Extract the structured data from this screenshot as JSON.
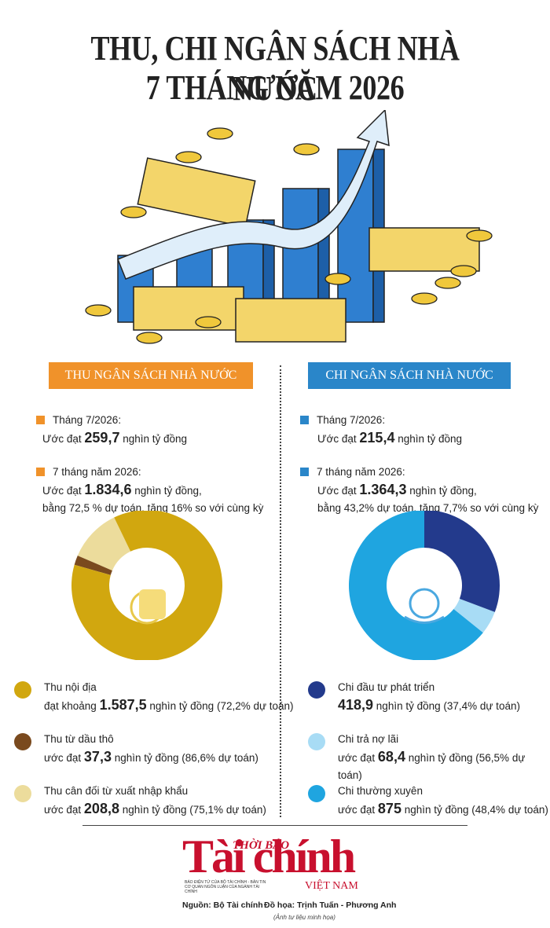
{
  "title": [
    "THU, CHI NGÂN SÁCH NHÀ NƯỚC",
    "7 THÁNG NĂM 2026"
  ],
  "left": {
    "heading": "THU NGÂN SÁCH NHÀ NƯỚC",
    "facts": [
      {
        "label": "Tháng 7/2026:",
        "pre": "Ước đạt ",
        "value": "259,7",
        "post": " nghìn tỷ đồng"
      },
      {
        "label": "7 tháng năm 2026:",
        "pre": "Ước đạt ",
        "value": "1.834,6",
        "post": " nghìn tỷ đồng,",
        "note": "bằng 72,5 % dự toán, tăng 16% so với cùng kỳ"
      }
    ],
    "breakdown": [
      {
        "name": "Thu nội địa",
        "color": "#d1a70f",
        "pre": "đạt khoảng ",
        "value": 1587.5,
        "value_label": "1.587,5",
        "post": " nghìn tỷ đồng (72,2% dự toán)"
      },
      {
        "name": "Thu từ dầu thô",
        "color": "#7a4a1e",
        "pre": "ước đạt ",
        "value": 37.3,
        "value_label": "37,3",
        "post": " nghìn tỷ đồng (86,6% dự toán)"
      },
      {
        "name": "Thu cân đối từ xuất nhập khẩu",
        "color": "#ecdc9c",
        "pre": "ước đạt ",
        "value": 208.8,
        "value_label": "208,8",
        "post": " nghìn tỷ đồng (75,1% dự toán)"
      }
    ]
  },
  "right": {
    "heading": "CHI NGÂN SÁCH NHÀ NƯỚC",
    "facts": [
      {
        "label": "Tháng 7/2026:",
        "pre": "Ước đạt ",
        "value": "215,4",
        "post": " nghìn tỷ đồng"
      },
      {
        "label": "7 tháng năm 2026:",
        "pre": "Ước đạt ",
        "value": "1.364,3",
        "post": " nghìn tỷ đồng,",
        "note": "bằng 43,2% dự toán, tăng 7,7% so với cùng kỳ"
      }
    ],
    "breakdown": [
      {
        "name": "Chi đầu tư phát triển",
        "color": "#233a8c",
        "value": 418.9,
        "value_label": "418,9",
        "post": " nghìn tỷ đồng (37,4% dự toán)"
      },
      {
        "name": "Chi trả nợ lãi",
        "color": "#a8dcf5",
        "pre": "ước đạt ",
        "value": 68.4,
        "value_label": "68,4",
        "post": " nghìn tỷ đồng (56,5% dự toán)"
      },
      {
        "name": "Chi thường xuyên",
        "color": "#1fa5e0",
        "pre": "ước đạt ",
        "value": 875,
        "value_label": "875",
        "post": " nghìn tỷ đồng (48,4% dự toán)"
      }
    ]
  },
  "footer": {
    "logo_top": "THỜI BÁO",
    "logo_main": "Tài chính",
    "logo_sub": "VIỆT NAM",
    "logo_note": "BÁO ĐIỆN TỬ CỦA BỘ TÀI CHÍNH - BẢN TIN CƠ QUAN NGÔN LUẬN CỦA NGÀNH TÀI CHÍNH",
    "source": "Nguồn: Bộ Tài chính",
    "credit": "Đồ họa: Trịnh Tuấn - Phương Anh",
    "photo_note": "(Ảnh tư liệu minh họa)"
  }
}
